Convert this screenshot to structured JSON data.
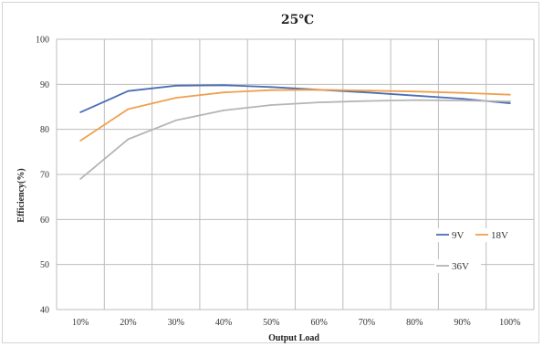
{
  "chart_data": {
    "type": "line",
    "title": "25℃",
    "xlabel": "Output Load",
    "ylabel": "Efficiency(%)",
    "categories": [
      "10%",
      "20%",
      "30%",
      "40%",
      "50%",
      "60%",
      "70%",
      "80%",
      "90%",
      "100%"
    ],
    "ylim": [
      40,
      100
    ],
    "yticks": [
      40,
      50,
      60,
      70,
      80,
      90,
      100
    ],
    "grid": "both",
    "legend_position": "bottom-right inside plot",
    "series": [
      {
        "name": "9V",
        "color": "#4a6fb5",
        "values": [
          83.8,
          88.5,
          89.7,
          89.8,
          89.4,
          88.8,
          88.2,
          87.5,
          86.8,
          85.8
        ]
      },
      {
        "name": "18V",
        "color": "#f0a050",
        "values": [
          77.5,
          84.5,
          87.0,
          88.2,
          88.7,
          88.8,
          88.6,
          88.4,
          88.1,
          87.7
        ]
      },
      {
        "name": "36V",
        "color": "#b5b5b5",
        "values": [
          69.0,
          77.8,
          82.0,
          84.2,
          85.4,
          86.0,
          86.3,
          86.5,
          86.4,
          86.2
        ]
      }
    ]
  }
}
